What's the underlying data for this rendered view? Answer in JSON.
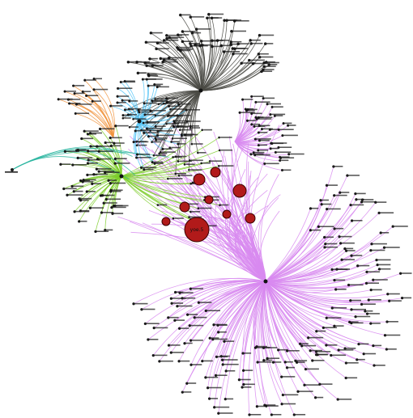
{
  "colors": {
    "dark_cluster": "#4a4a44",
    "violet_cluster": "#d889f0",
    "green_cluster": "#7ccd2a",
    "blue_cluster": "#4fc3f7",
    "orange_cluster": "#f0923a",
    "teal_cluster": "#2ab5a0",
    "core_node_fill": "#b11a1a",
    "core_node_stroke": "#3a0000",
    "background": "#ffffff"
  },
  "graph": {
    "core_nodes": [
      {
        "id": "c1",
        "label": "yoe.5",
        "size": "large"
      },
      {
        "id": "c2",
        "label": "",
        "size": "medium"
      },
      {
        "id": "c3",
        "label": "",
        "size": "medium"
      },
      {
        "id": "c4",
        "label": "",
        "size": "small"
      },
      {
        "id": "c5",
        "label": "",
        "size": "small"
      },
      {
        "id": "c6",
        "label": "",
        "size": "small"
      },
      {
        "id": "c7",
        "label": "",
        "size": "small"
      },
      {
        "id": "c8",
        "label": "",
        "size": "small"
      },
      {
        "id": "c9",
        "label": "",
        "size": "small"
      }
    ],
    "clusters": [
      {
        "name": "dark",
        "color_key": "dark_cluster"
      },
      {
        "name": "violet",
        "color_key": "violet_cluster"
      },
      {
        "name": "green",
        "color_key": "green_cluster"
      },
      {
        "name": "blue",
        "color_key": "blue_cluster"
      },
      {
        "name": "orange",
        "color_key": "orange_cluster"
      },
      {
        "name": "teal",
        "color_key": "teal_cluster"
      }
    ]
  }
}
